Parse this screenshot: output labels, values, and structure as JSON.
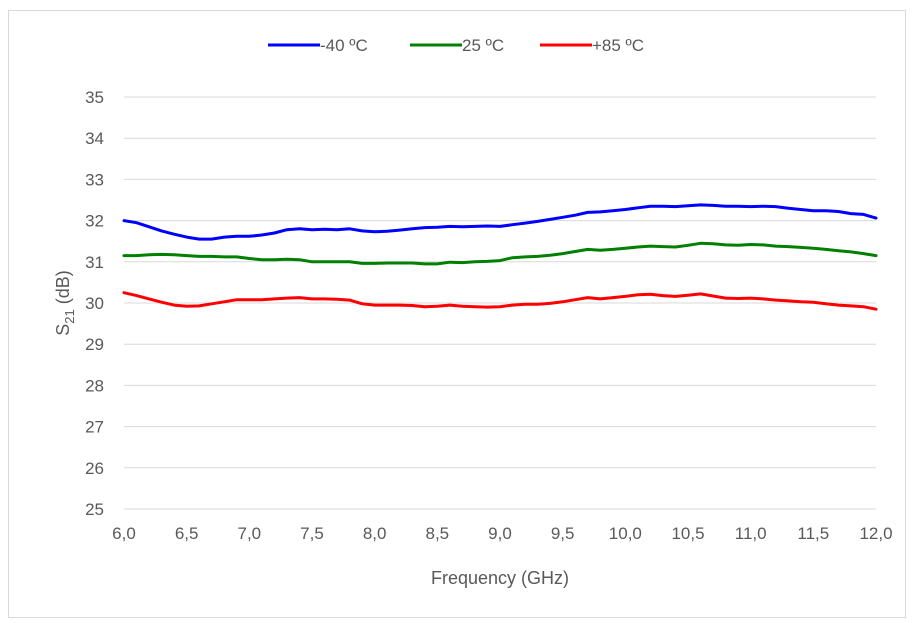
{
  "chart_data": {
    "type": "line",
    "xlabel": "Frequency (GHz)",
    "ylabel": {
      "base": "S",
      "sub": "21",
      "rest": " (dB)"
    },
    "xlim": [
      6.0,
      12.0
    ],
    "ylim": [
      25,
      35
    ],
    "x_ticks": [
      "6,0",
      "6,5",
      "7,0",
      "7,5",
      "8,0",
      "8,5",
      "9,0",
      "9,5",
      "10,0",
      "10,5",
      "11,0",
      "11,5",
      "12,0"
    ],
    "y_ticks": [
      "25",
      "26",
      "27",
      "28",
      "29",
      "30",
      "31",
      "32",
      "33",
      "34",
      "35"
    ],
    "grid": "horizontal",
    "legend_position": "top",
    "series": [
      {
        "name": "-40 ºC",
        "color": "#0000ff",
        "x": [
          6.0,
          6.1,
          6.2,
          6.3,
          6.4,
          6.5,
          6.6,
          6.7,
          6.8,
          6.9,
          7.0,
          7.1,
          7.2,
          7.3,
          7.4,
          7.5,
          7.6,
          7.7,
          7.8,
          7.9,
          8.0,
          8.1,
          8.2,
          8.3,
          8.4,
          8.5,
          8.6,
          8.7,
          8.8,
          8.9,
          9.0,
          9.1,
          9.2,
          9.3,
          9.4,
          9.5,
          9.6,
          9.7,
          9.8,
          9.9,
          10.0,
          10.1,
          10.2,
          10.3,
          10.4,
          10.5,
          10.6,
          10.7,
          10.8,
          10.9,
          11.0,
          11.1,
          11.2,
          11.3,
          11.4,
          11.5,
          11.6,
          11.7,
          11.8,
          11.9,
          12.0
        ],
        "y": [
          32.0,
          31.95,
          31.85,
          31.75,
          31.67,
          31.6,
          31.55,
          31.55,
          31.6,
          31.62,
          31.62,
          31.65,
          31.7,
          31.78,
          31.8,
          31.78,
          31.79,
          31.78,
          31.8,
          31.75,
          31.73,
          31.74,
          31.77,
          31.8,
          31.83,
          31.84,
          31.86,
          31.85,
          31.86,
          31.87,
          31.86,
          31.9,
          31.94,
          31.98,
          32.03,
          32.08,
          32.13,
          32.2,
          32.21,
          32.24,
          32.27,
          32.31,
          32.35,
          32.35,
          32.34,
          32.36,
          32.38,
          32.37,
          32.35,
          32.35,
          32.34,
          32.35,
          32.34,
          32.3,
          32.27,
          32.24,
          32.24,
          32.22,
          32.17,
          32.15,
          32.06
        ]
      },
      {
        "name": "25 ºC",
        "color": "#008000",
        "x": [
          6.0,
          6.1,
          6.2,
          6.3,
          6.4,
          6.5,
          6.6,
          6.7,
          6.8,
          6.9,
          7.0,
          7.1,
          7.2,
          7.3,
          7.4,
          7.5,
          7.6,
          7.7,
          7.8,
          7.9,
          8.0,
          8.1,
          8.2,
          8.3,
          8.4,
          8.5,
          8.6,
          8.7,
          8.8,
          8.9,
          9.0,
          9.1,
          9.2,
          9.3,
          9.4,
          9.5,
          9.6,
          9.7,
          9.8,
          9.9,
          10.0,
          10.1,
          10.2,
          10.3,
          10.4,
          10.5,
          10.6,
          10.7,
          10.8,
          10.9,
          11.0,
          11.1,
          11.2,
          11.3,
          11.4,
          11.5,
          11.6,
          11.7,
          11.8,
          11.9,
          12.0
        ],
        "y": [
          31.15,
          31.15,
          31.17,
          31.18,
          31.17,
          31.15,
          31.13,
          31.13,
          31.12,
          31.12,
          31.08,
          31.05,
          31.05,
          31.06,
          31.05,
          31.0,
          31.0,
          31.0,
          31.0,
          30.96,
          30.96,
          30.97,
          30.97,
          30.97,
          30.95,
          30.95,
          30.99,
          30.98,
          31.0,
          31.01,
          31.03,
          31.1,
          31.12,
          31.13,
          31.16,
          31.2,
          31.25,
          31.3,
          31.28,
          31.3,
          31.33,
          31.36,
          31.38,
          31.37,
          31.36,
          31.4,
          31.45,
          31.44,
          31.41,
          31.4,
          31.42,
          31.41,
          31.38,
          31.37,
          31.35,
          31.33,
          31.3,
          31.27,
          31.24,
          31.2,
          31.15
        ]
      },
      {
        "name": "+85 ºC",
        "color": "#ff0000",
        "x": [
          6.0,
          6.1,
          6.2,
          6.3,
          6.4,
          6.5,
          6.6,
          6.7,
          6.8,
          6.9,
          7.0,
          7.1,
          7.2,
          7.3,
          7.4,
          7.5,
          7.6,
          7.7,
          7.8,
          7.9,
          8.0,
          8.1,
          8.2,
          8.3,
          8.4,
          8.5,
          8.6,
          8.7,
          8.8,
          8.9,
          9.0,
          9.1,
          9.2,
          9.3,
          9.4,
          9.5,
          9.6,
          9.7,
          9.8,
          9.9,
          10.0,
          10.1,
          10.2,
          10.3,
          10.4,
          10.5,
          10.6,
          10.7,
          10.8,
          10.9,
          11.0,
          11.1,
          11.2,
          11.3,
          11.4,
          11.5,
          11.6,
          11.7,
          11.8,
          11.9,
          12.0
        ],
        "y": [
          30.25,
          30.18,
          30.1,
          30.02,
          29.95,
          29.92,
          29.93,
          29.98,
          30.03,
          30.08,
          30.08,
          30.08,
          30.1,
          30.12,
          30.13,
          30.1,
          30.1,
          30.09,
          30.07,
          29.98,
          29.95,
          29.95,
          29.95,
          29.94,
          29.91,
          29.92,
          29.95,
          29.92,
          29.91,
          29.9,
          29.91,
          29.95,
          29.97,
          29.97,
          29.99,
          30.03,
          30.08,
          30.13,
          30.1,
          30.13,
          30.16,
          30.2,
          30.21,
          30.18,
          30.16,
          30.19,
          30.22,
          30.17,
          30.12,
          30.11,
          30.12,
          30.1,
          30.07,
          30.05,
          30.03,
          30.02,
          29.98,
          29.95,
          29.93,
          29.91,
          29.85
        ]
      }
    ]
  }
}
